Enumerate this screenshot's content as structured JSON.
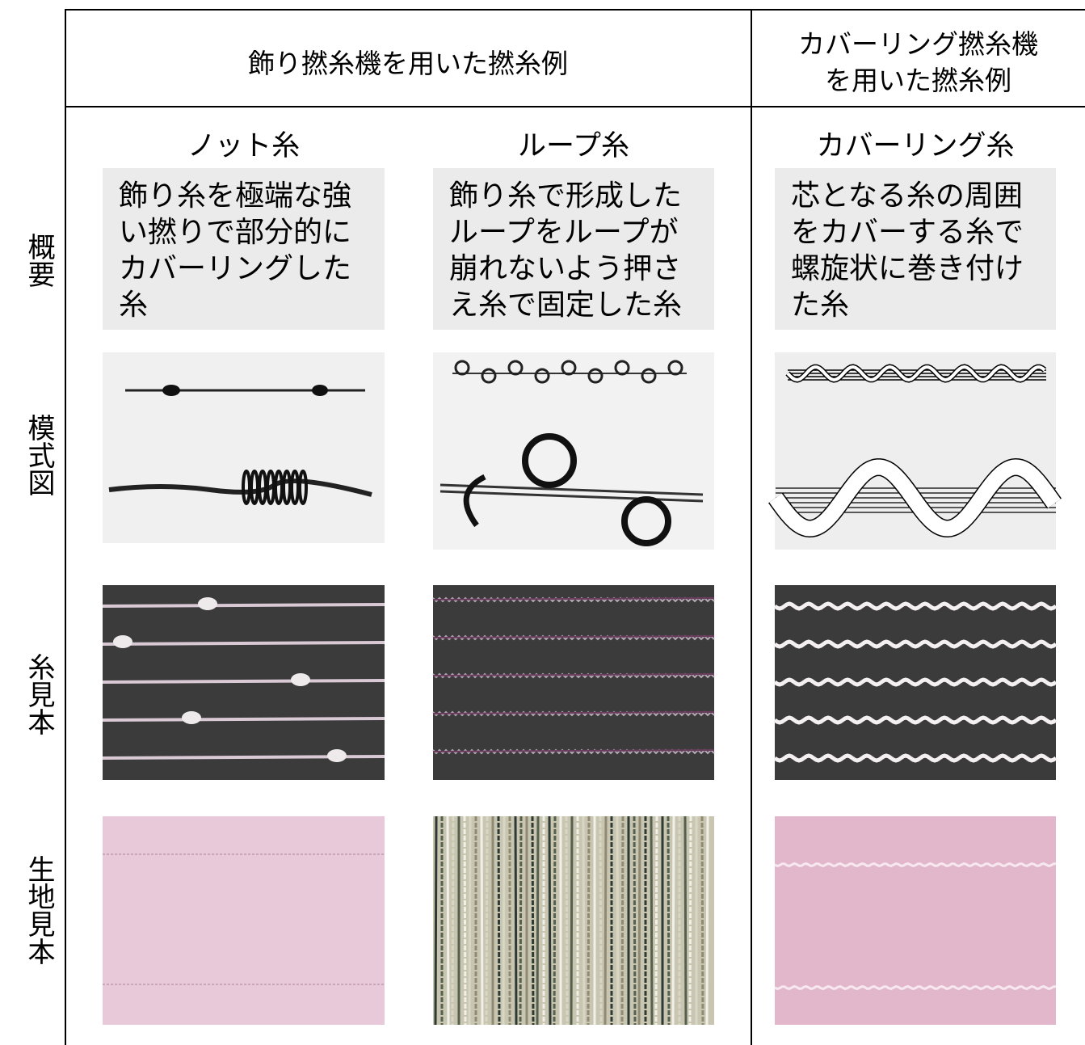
{
  "table": {
    "header": {
      "groups": [
        {
          "lines": [
            "飾り撚糸機を用いた撚糸例"
          ]
        },
        {
          "lines": [
            "カバーリング撚糸機",
            "を用いた撚糸例"
          ]
        }
      ]
    },
    "columns": [
      "ノット糸",
      "ループ糸",
      "カバーリング糸"
    ],
    "row_labels": [
      "概要",
      "模式図",
      "糸見本",
      "生地見本"
    ],
    "descriptions": [
      [
        "飾り糸を極端な強",
        "い撚りで部分的に",
        "カバーリングした",
        "糸"
      ],
      [
        "飾り糸で形成した",
        "ループをループが",
        "崩れないよう押さ",
        "え糸で固定した糸"
      ],
      [
        "芯となる糸の周囲",
        "をカバーする糸で",
        "螺旋状に巻き付け",
        "た糸"
      ]
    ]
  }
}
